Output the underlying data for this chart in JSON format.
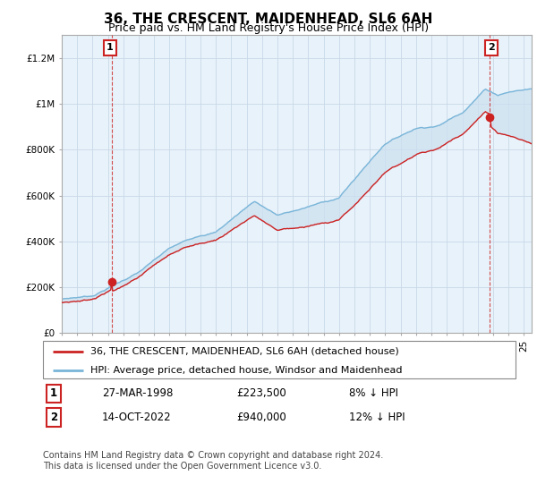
{
  "title": "36, THE CRESCENT, MAIDENHEAD, SL6 6AH",
  "subtitle": "Price paid vs. HM Land Registry's House Price Index (HPI)",
  "legend_line1": "36, THE CRESCENT, MAIDENHEAD, SL6 6AH (detached house)",
  "legend_line2": "HPI: Average price, detached house, Windsor and Maidenhead",
  "annotation1_date": "27-MAR-1998",
  "annotation1_price": "£223,500",
  "annotation1_hpi": "8% ↓ HPI",
  "annotation2_date": "14-OCT-2022",
  "annotation2_price": "£940,000",
  "annotation2_hpi": "12% ↓ HPI",
  "footer": "Contains HM Land Registry data © Crown copyright and database right 2024.\nThis data is licensed under the Open Government Licence v3.0.",
  "hpi_color": "#7ab6d9",
  "price_color": "#cc2222",
  "fill_color": "#cce0f0",
  "marker_color": "#cc2222",
  "annotation_box_color": "#cc2222",
  "dashed_line_color": "#cc2222",
  "ylim": [
    0,
    1300000
  ],
  "yticks": [
    0,
    200000,
    400000,
    600000,
    800000,
    1000000,
    1200000
  ],
  "ytick_labels": [
    "£0",
    "£200K",
    "£400K",
    "£600K",
    "£800K",
    "£1M",
    "£1.2M"
  ],
  "sale1_year": 1998.23,
  "sale1_price": 223500,
  "sale2_year": 2022.79,
  "sale2_price": 940000,
  "background_color": "#ffffff",
  "chart_bg_color": "#e8f2fa",
  "grid_color": "#c8d8e8",
  "title_fontsize": 11,
  "subtitle_fontsize": 9,
  "axis_fontsize": 7.5,
  "legend_fontsize": 8,
  "table_fontsize": 8.5,
  "footer_fontsize": 7
}
